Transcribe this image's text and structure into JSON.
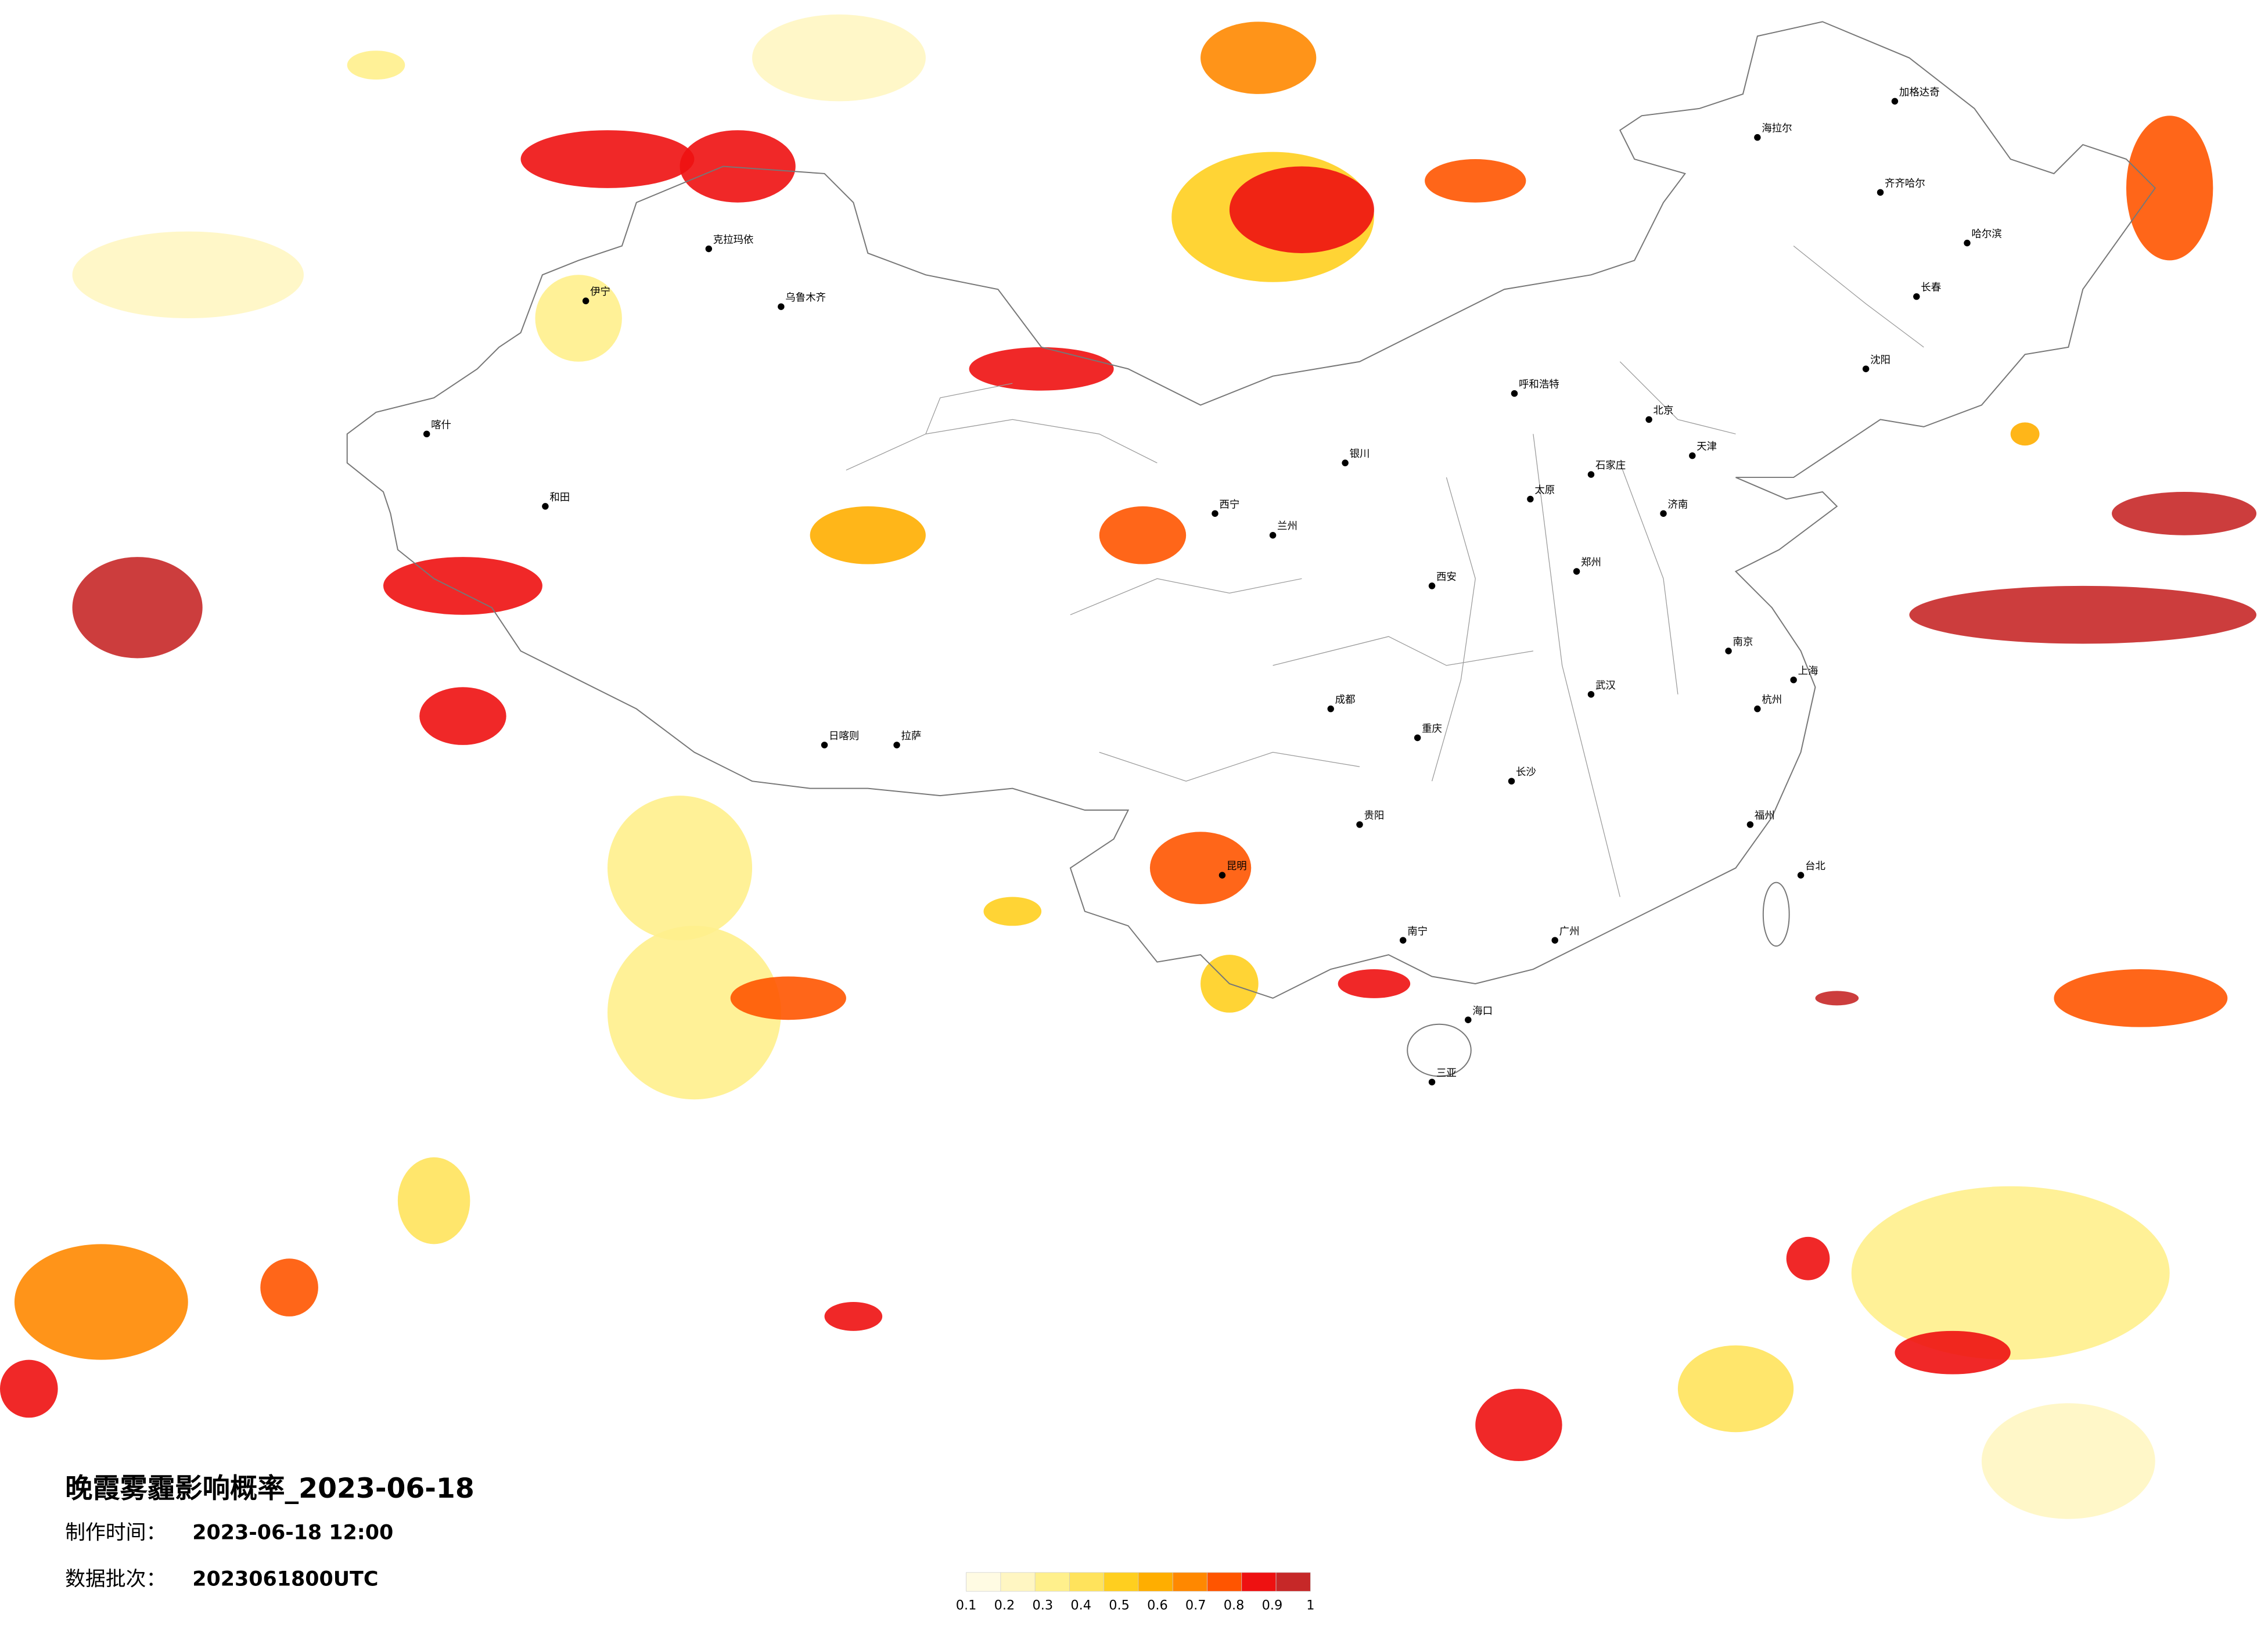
{
  "title": "晚霞雾霾影响概率_2023-06-18",
  "production_time": {
    "label": "制作时间：",
    "value": "2023-06-18 12:00"
  },
  "batch": {
    "label": "数据批次：",
    "value": "2023061800UTC"
  },
  "colorbar": {
    "colors": [
      "#fffbe3",
      "#fff6c2",
      "#fff08c",
      "#ffe35c",
      "#ffcf1f",
      "#ffae00",
      "#ff8800",
      "#ff5500",
      "#ee1111",
      "#c62828"
    ],
    "ticks": [
      0.1,
      0.2,
      0.3,
      0.4,
      0.5,
      0.6,
      0.7,
      0.8,
      0.9,
      1
    ]
  },
  "cities": [
    "海拉尔",
    "加格达奇",
    "齐齐哈尔",
    "哈尔滨",
    "长春",
    "沈阳",
    "呼和浩特",
    "北京",
    "天津",
    "石家庄",
    "太原",
    "济南",
    "郑州",
    "西安",
    "兰州",
    "西宁",
    "银川",
    "乌鲁木齐",
    "克拉玛依",
    "伊宁",
    "喀什",
    "和田",
    "拉萨",
    "日喀则",
    "成都",
    "重庆",
    "贵阳",
    "昆明",
    "南宁",
    "广州",
    "长沙",
    "武汉",
    "南京",
    "上海",
    "杭州",
    "福州",
    "台北",
    "海口",
    "三亚"
  ]
}
